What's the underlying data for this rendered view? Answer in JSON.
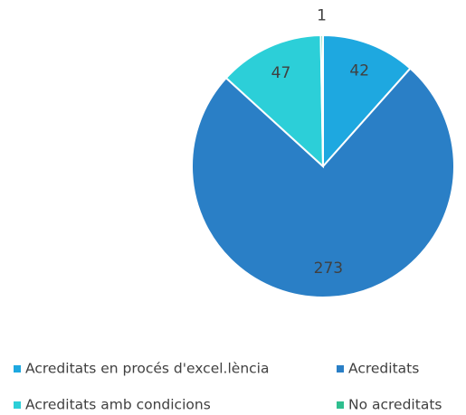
{
  "chart_data": {
    "type": "pie",
    "categories": [
      "Acreditats en procés d'excel.lència",
      "Acreditats",
      "Acreditats amb condicions",
      "No acreditats"
    ],
    "values": [
      42,
      273,
      47,
      1
    ],
    "colors": [
      "#1ea8e0",
      "#2a7fc6",
      "#2ccfd8",
      "#2fbf8f"
    ],
    "legend": "bottom"
  }
}
